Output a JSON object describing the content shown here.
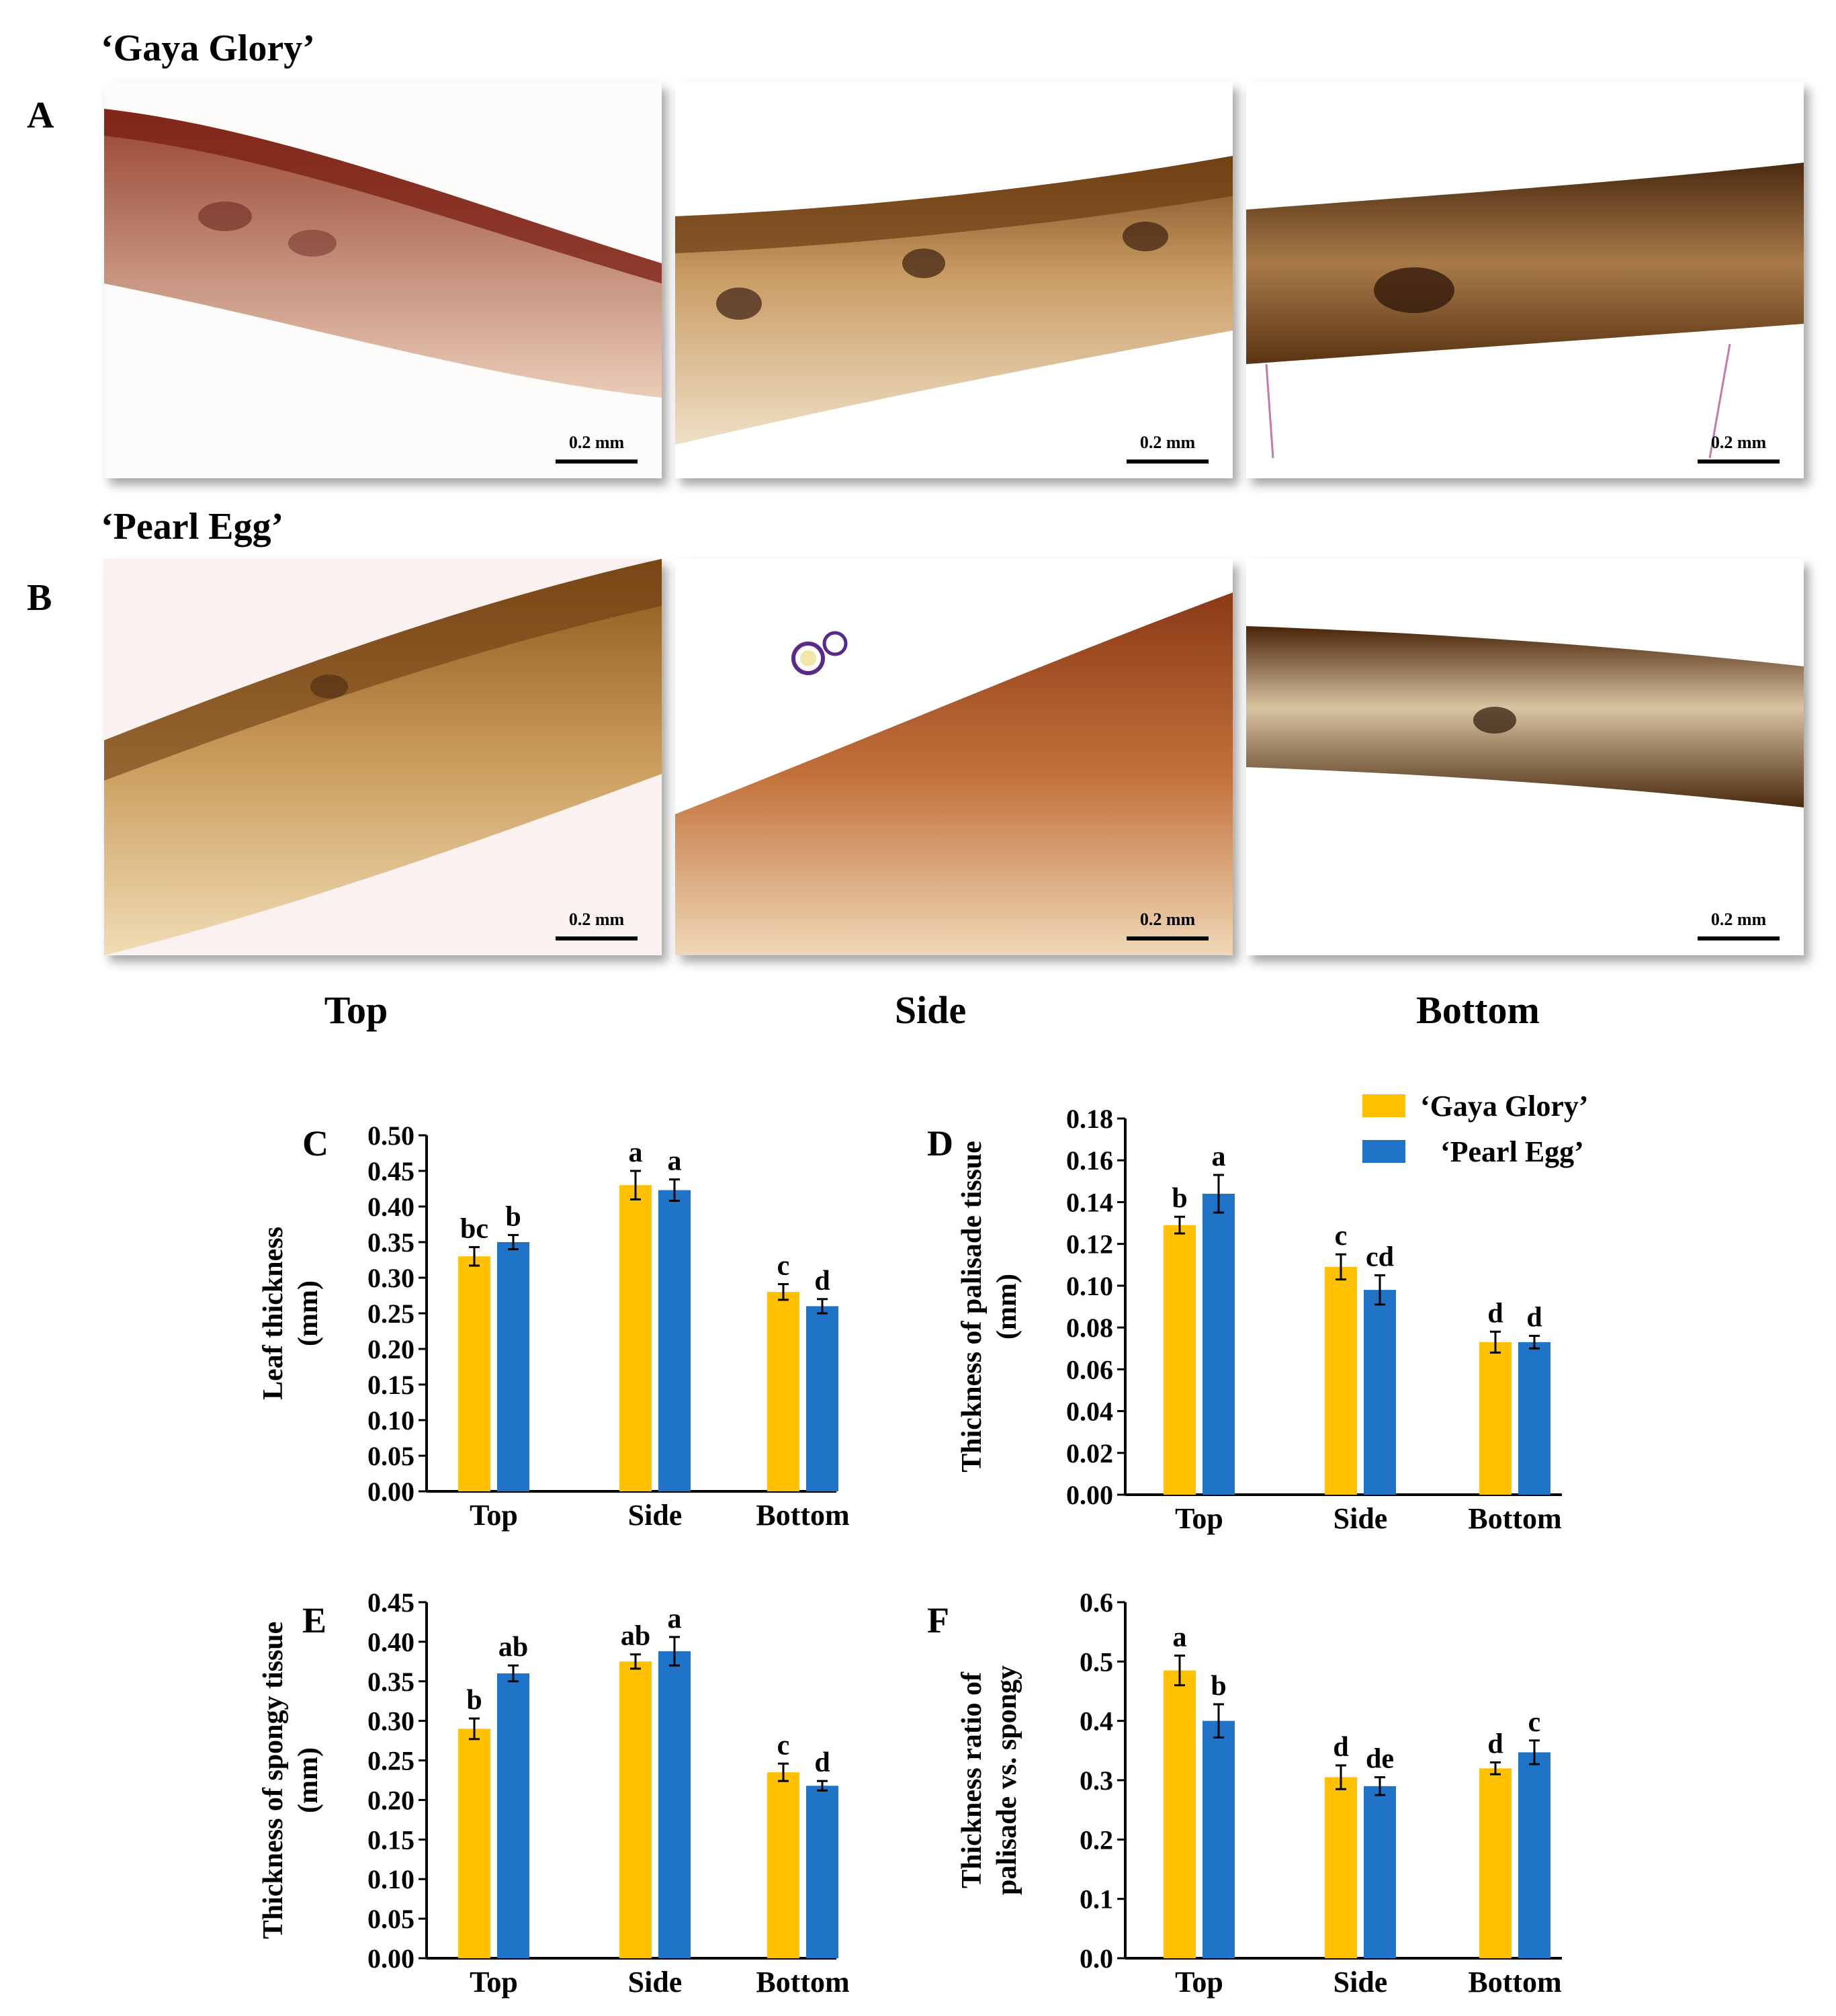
{
  "rows": [
    {
      "letter": "A",
      "title": "‘Gaya Glory’",
      "scale_labels": [
        "0.2 mm",
        "0.2 mm",
        "0.2 mm"
      ]
    },
    {
      "letter": "B",
      "title": "‘Pearl Egg’",
      "scale_labels": [
        "0.2 mm",
        "0.2 mm",
        "0.2 mm"
      ]
    }
  ],
  "column_labels": [
    "Top",
    "Side",
    "Bottom"
  ],
  "legend": {
    "items": [
      {
        "label": "‘Gaya Glory’",
        "color": "#FFC000"
      },
      {
        "label": "‘Pearl Egg’",
        "color": "#1F74C8"
      }
    ]
  },
  "colors": {
    "gaya": "#FFC000",
    "pearl": "#1F74C8"
  },
  "chart_data": [
    {
      "panel": "C",
      "type": "bar",
      "ylabel_lines": [
        "Leaf thickness",
        "(mm)"
      ],
      "categories": [
        "Top",
        "Side",
        "Bottom"
      ],
      "ylim": [
        0,
        0.5
      ],
      "yticks": [
        "0.00",
        "0.05",
        "0.10",
        "0.15",
        "0.20",
        "0.25",
        "0.30",
        "0.35",
        "0.40",
        "0.45",
        "0.50"
      ],
      "series": [
        {
          "name": "‘Gaya Glory’",
          "values": [
            0.33,
            0.43,
            0.28
          ],
          "errors": [
            0.013,
            0.02,
            0.011
          ],
          "letters": [
            "bc",
            "a",
            "c"
          ]
        },
        {
          "name": "‘Pearl Egg’",
          "values": [
            0.35,
            0.423,
            0.26
          ],
          "errors": [
            0.01,
            0.015,
            0.01
          ],
          "letters": [
            "b",
            "a",
            "d"
          ]
        }
      ]
    },
    {
      "panel": "D",
      "type": "bar",
      "ylabel_lines": [
        "Thickness of palisade tissue",
        "(mm)"
      ],
      "categories": [
        "Top",
        "Side",
        "Bottom"
      ],
      "ylim": [
        0,
        0.18
      ],
      "yticks": [
        "0.00",
        "0.02",
        "0.04",
        "0.06",
        "0.08",
        "0.10",
        "0.12",
        "0.14",
        "0.16",
        "0.18"
      ],
      "series": [
        {
          "name": "‘Gaya Glory’",
          "values": [
            0.129,
            0.109,
            0.073
          ],
          "errors": [
            0.004,
            0.006,
            0.005
          ],
          "letters": [
            "b",
            "c",
            "d"
          ]
        },
        {
          "name": "‘Pearl Egg’",
          "values": [
            0.144,
            0.098,
            0.073
          ],
          "errors": [
            0.009,
            0.007,
            0.003
          ],
          "letters": [
            "a",
            "cd",
            "d"
          ]
        }
      ]
    },
    {
      "panel": "E",
      "type": "bar",
      "ylabel_lines": [
        "Thickness of spongy tissue",
        "(mm)"
      ],
      "categories": [
        "Top",
        "Side",
        "Bottom"
      ],
      "ylim": [
        0,
        0.45
      ],
      "yticks": [
        "0.00",
        "0.05",
        "0.10",
        "0.15",
        "0.20",
        "0.25",
        "0.30",
        "0.35",
        "0.40",
        "0.45"
      ],
      "series": [
        {
          "name": "‘Gaya Glory’",
          "values": [
            0.29,
            0.375,
            0.235
          ],
          "errors": [
            0.013,
            0.009,
            0.011
          ],
          "letters": [
            "b",
            "ab",
            "c"
          ]
        },
        {
          "name": "‘Pearl Egg’",
          "values": [
            0.36,
            0.388,
            0.218
          ],
          "errors": [
            0.01,
            0.018,
            0.006
          ],
          "letters": [
            "ab",
            "a",
            "d"
          ]
        }
      ]
    },
    {
      "panel": "F",
      "type": "bar",
      "ylabel_lines": [
        "Thickness ratio of",
        "palisade vs. spongy"
      ],
      "categories": [
        "Top",
        "Side",
        "Bottom"
      ],
      "ylim": [
        0,
        0.6
      ],
      "yticks": [
        "0.0",
        "0.1",
        "0.2",
        "0.3",
        "0.4",
        "0.5",
        "0.6"
      ],
      "series": [
        {
          "name": "‘Gaya Glory’",
          "values": [
            0.485,
            0.305,
            0.32
          ],
          "errors": [
            0.025,
            0.02,
            0.01
          ],
          "letters": [
            "a",
            "d",
            "d"
          ]
        },
        {
          "name": "‘Pearl Egg’",
          "values": [
            0.4,
            0.29,
            0.347
          ],
          "errors": [
            0.028,
            0.015,
            0.02
          ],
          "letters": [
            "b",
            "de",
            "c"
          ]
        }
      ]
    }
  ]
}
